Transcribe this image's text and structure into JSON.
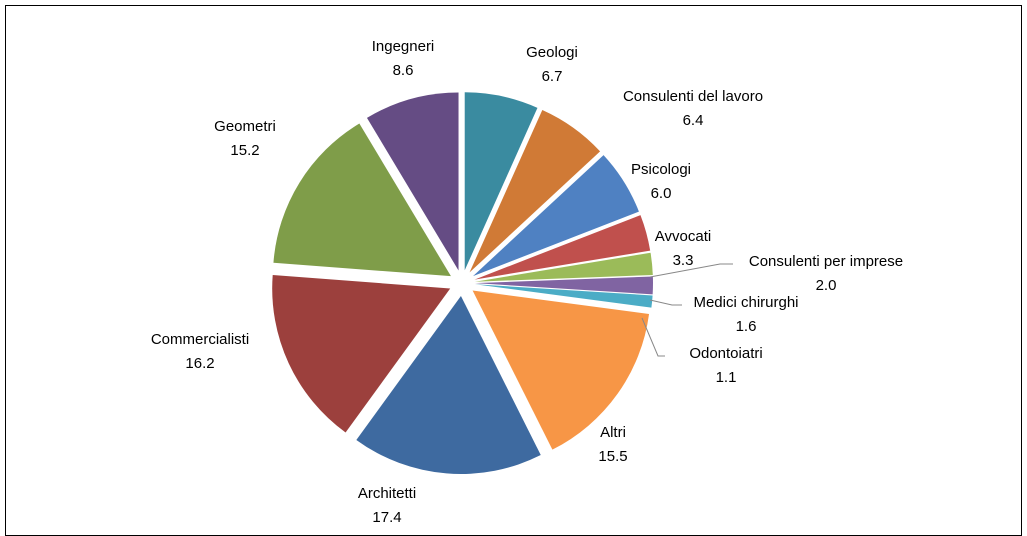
{
  "chart_data": {
    "type": "pie",
    "categories": [
      "Geologi",
      "Consulenti del lavoro",
      "Psicologi",
      "Avvocati",
      "Consulenti per imprese",
      "Medici chirurghi",
      "Odontoiatri",
      "Altri",
      "Architetti",
      "Commercialisti",
      "Geometri",
      "Ingegneri"
    ],
    "values": [
      6.7,
      6.4,
      6.0,
      3.3,
      2.0,
      1.6,
      1.1,
      15.5,
      17.4,
      16.2,
      15.2,
      8.6
    ],
    "value_labels": [
      "6.7",
      "6.4",
      "6.0",
      "3.3",
      "2.0",
      "1.6",
      "1.1",
      "15.5",
      "17.4",
      "16.2",
      "15.2",
      "8.6"
    ],
    "colors": [
      "#3a8ba0",
      "#d07a36",
      "#4f81c2",
      "#c0504d",
      "#9bbb59",
      "#8064a2",
      "#4bacc6",
      "#f79646",
      "#3e6aa0",
      "#9c403d",
      "#7f9d49",
      "#654c84"
    ]
  }
}
